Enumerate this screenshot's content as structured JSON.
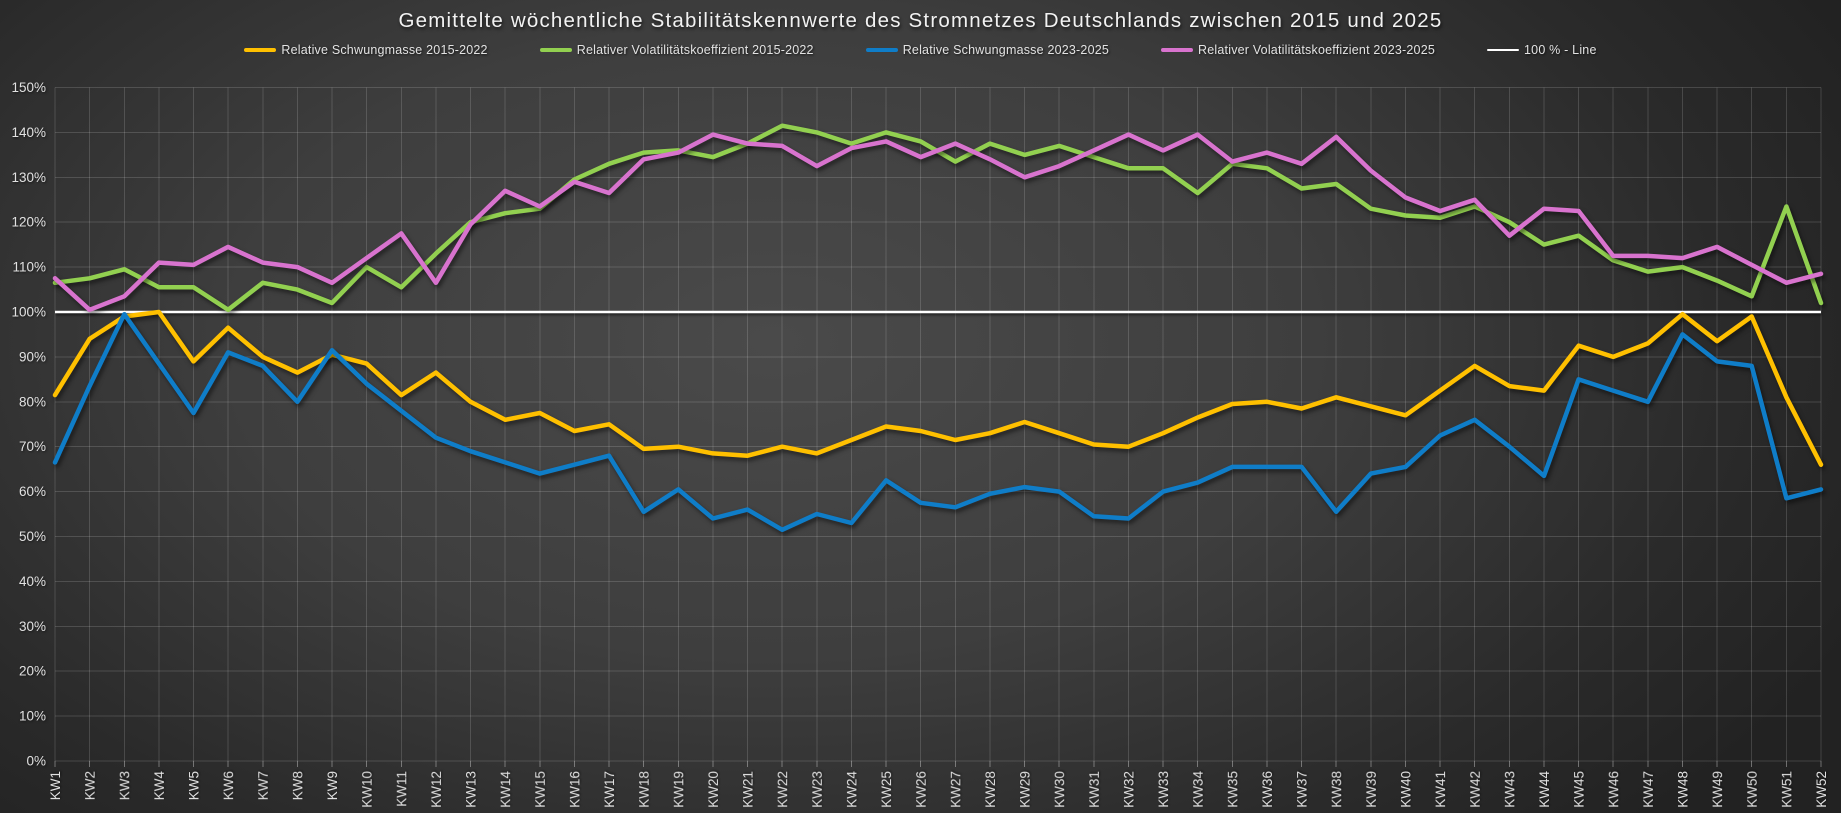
{
  "title": "Gemittelte wöchentliche Stabilitätskennwerte des Stromnetzes Deutschlands zwischen 2015 und 2025",
  "legend": {
    "position": "top",
    "items": [
      {
        "label": "Relative Schwungmasse 2015-2022",
        "color": "#FFC000",
        "marker_height": 4.5
      },
      {
        "label": "Relativer Volatilitätskoeffizient 2015-2022",
        "color": "#92D050",
        "marker_height": 4.5
      },
      {
        "label": "Relative Schwungmasse 2023-2025",
        "color": "#0F7DC8",
        "marker_height": 4.5
      },
      {
        "label": "Relativer Volatilitätskoeffizient 2023-2025",
        "color": "#D873CE",
        "marker_height": 4.5
      },
      {
        "label": "100 % - Line",
        "color": "#FFFFFF",
        "marker_height": 2
      }
    ]
  },
  "chart_data": {
    "type": "line",
    "unit": "%",
    "grid": true,
    "ylim": [
      0,
      150
    ],
    "ytick_step": 10,
    "y_tick_labels": [
      "0%",
      "10%",
      "20%",
      "30%",
      "40%",
      "50%",
      "60%",
      "70%",
      "80%",
      "90%",
      "100%",
      "110%",
      "120%",
      "130%",
      "140%",
      "150%"
    ],
    "x_axis_label_rotation_deg": -90,
    "categories": [
      "KW1",
      "KW2",
      "KW3",
      "KW4",
      "KW5",
      "KW6",
      "KW7",
      "KW8",
      "KW9",
      "KW10",
      "KW11",
      "KW12",
      "KW13",
      "KW14",
      "KW15",
      "KW16",
      "KW17",
      "KW18",
      "KW19",
      "KW20",
      "KW21",
      "KW22",
      "KW23",
      "KW24",
      "KW25",
      "KW26",
      "KW27",
      "KW28",
      "KW29",
      "KW30",
      "KW31",
      "KW32",
      "KW33",
      "KW34",
      "KW35",
      "KW36",
      "KW37",
      "KW38",
      "KW39",
      "KW40",
      "KW41",
      "KW42",
      "KW43",
      "KW44",
      "KW45",
      "KW46",
      "KW47",
      "KW48",
      "KW49",
      "KW50",
      "KW51",
      "KW52"
    ],
    "series": [
      {
        "name": "Relative Schwungmasse 2015-2022",
        "color": "#FFC000",
        "stroke_width": 4.5,
        "values": [
          81.5,
          94,
          99,
          100,
          89,
          96.5,
          90,
          86.5,
          90.5,
          88.5,
          81.5,
          86.5,
          80,
          76,
          77.5,
          73.5,
          75,
          69.5,
          70,
          68.5,
          68,
          70,
          68.5,
          71.5,
          74.5,
          73.5,
          71.5,
          73,
          75.5,
          73,
          70.5,
          70,
          73,
          76.5,
          79.5,
          80,
          78.5,
          81,
          79,
          77,
          82.5,
          88,
          83.5,
          82.5,
          92.5,
          90,
          93,
          99.5,
          93.5,
          99,
          81,
          66
        ]
      },
      {
        "name": "Relativer Volatilitätskoeffizient 2015-2022",
        "color": "#92D050",
        "stroke_width": 4.5,
        "values": [
          106.5,
          107.5,
          109.5,
          105.5,
          105.5,
          100.5,
          106.5,
          105,
          102,
          110,
          105.5,
          113,
          120,
          122,
          123,
          129.5,
          133,
          135.5,
          136,
          134.5,
          137.5,
          141.5,
          140,
          137.5,
          140,
          138,
          133.5,
          137.5,
          135,
          137,
          134.5,
          132,
          132,
          126.5,
          133,
          132,
          127.5,
          128.5,
          123,
          121.5,
          121,
          123.5,
          120,
          115,
          117,
          111.5,
          109,
          110,
          107,
          103.5,
          123.5,
          102
        ]
      },
      {
        "name": "Relative Schwungmasse 2023-2025",
        "color": "#0F7DC8",
        "stroke_width": 4.5,
        "values": [
          66.5,
          83.5,
          99.5,
          88.5,
          77.5,
          91,
          88,
          80,
          91.5,
          84,
          78,
          72,
          69,
          66.5,
          64,
          66,
          68,
          55.5,
          60.5,
          54,
          56,
          51.5,
          55,
          53,
          62.5,
          57.5,
          56.5,
          59.5,
          61,
          60,
          54.5,
          54,
          60,
          62,
          65.5,
          65.5,
          65.5,
          55.5,
          64,
          65.5,
          72.5,
          76,
          70,
          63.5,
          85,
          82.5,
          80,
          95,
          89,
          88,
          58.5,
          60.5
        ]
      },
      {
        "name": "Relativer Volatilitätskoeffizient 2023-2025",
        "color": "#D873CE",
        "stroke_width": 4.5,
        "values": [
          107.5,
          100.5,
          103.5,
          111,
          110.5,
          114.5,
          111,
          110,
          106.5,
          112,
          117.5,
          106.5,
          119.5,
          127,
          123.5,
          129,
          126.5,
          134,
          135.5,
          139.5,
          137.5,
          137,
          132.5,
          136.5,
          138,
          134.5,
          137.5,
          134,
          130,
          132.5,
          136,
          139.5,
          136,
          139.5,
          133.5,
          135.5,
          133,
          139,
          131.5,
          125.5,
          122.5,
          125,
          117,
          123,
          122.5,
          112.5,
          112.5,
          112,
          114.5,
          110.5,
          106.5,
          108.5
        ]
      }
    ],
    "reference_line": {
      "name": "100 % - Line",
      "value": 100,
      "color": "#FFFFFF",
      "stroke_width": 2.5
    }
  }
}
